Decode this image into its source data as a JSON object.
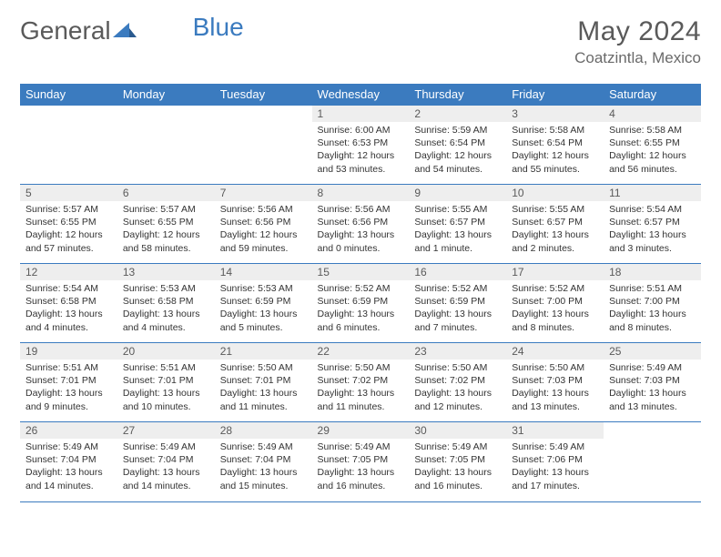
{
  "logo": {
    "text_a": "General",
    "text_b": "Blue"
  },
  "title": "May 2024",
  "location": "Coatzintla, Mexico",
  "colors": {
    "header_bg": "#3b7bbf",
    "header_text": "#ffffff",
    "day_num_bg": "#eeeeee",
    "border": "#3b7bbf",
    "title_color": "#5a5a5a"
  },
  "day_headers": [
    "Sunday",
    "Monday",
    "Tuesday",
    "Wednesday",
    "Thursday",
    "Friday",
    "Saturday"
  ],
  "weeks": [
    [
      {
        "num": "",
        "sunrise": "",
        "sunset": "",
        "daylight": ""
      },
      {
        "num": "",
        "sunrise": "",
        "sunset": "",
        "daylight": ""
      },
      {
        "num": "",
        "sunrise": "",
        "sunset": "",
        "daylight": ""
      },
      {
        "num": "1",
        "sunrise": "Sunrise: 6:00 AM",
        "sunset": "Sunset: 6:53 PM",
        "daylight": "Daylight: 12 hours and 53 minutes."
      },
      {
        "num": "2",
        "sunrise": "Sunrise: 5:59 AM",
        "sunset": "Sunset: 6:54 PM",
        "daylight": "Daylight: 12 hours and 54 minutes."
      },
      {
        "num": "3",
        "sunrise": "Sunrise: 5:58 AM",
        "sunset": "Sunset: 6:54 PM",
        "daylight": "Daylight: 12 hours and 55 minutes."
      },
      {
        "num": "4",
        "sunrise": "Sunrise: 5:58 AM",
        "sunset": "Sunset: 6:55 PM",
        "daylight": "Daylight: 12 hours and 56 minutes."
      }
    ],
    [
      {
        "num": "5",
        "sunrise": "Sunrise: 5:57 AM",
        "sunset": "Sunset: 6:55 PM",
        "daylight": "Daylight: 12 hours and 57 minutes."
      },
      {
        "num": "6",
        "sunrise": "Sunrise: 5:57 AM",
        "sunset": "Sunset: 6:55 PM",
        "daylight": "Daylight: 12 hours and 58 minutes."
      },
      {
        "num": "7",
        "sunrise": "Sunrise: 5:56 AM",
        "sunset": "Sunset: 6:56 PM",
        "daylight": "Daylight: 12 hours and 59 minutes."
      },
      {
        "num": "8",
        "sunrise": "Sunrise: 5:56 AM",
        "sunset": "Sunset: 6:56 PM",
        "daylight": "Daylight: 13 hours and 0 minutes."
      },
      {
        "num": "9",
        "sunrise": "Sunrise: 5:55 AM",
        "sunset": "Sunset: 6:57 PM",
        "daylight": "Daylight: 13 hours and 1 minute."
      },
      {
        "num": "10",
        "sunrise": "Sunrise: 5:55 AM",
        "sunset": "Sunset: 6:57 PM",
        "daylight": "Daylight: 13 hours and 2 minutes."
      },
      {
        "num": "11",
        "sunrise": "Sunrise: 5:54 AM",
        "sunset": "Sunset: 6:57 PM",
        "daylight": "Daylight: 13 hours and 3 minutes."
      }
    ],
    [
      {
        "num": "12",
        "sunrise": "Sunrise: 5:54 AM",
        "sunset": "Sunset: 6:58 PM",
        "daylight": "Daylight: 13 hours and 4 minutes."
      },
      {
        "num": "13",
        "sunrise": "Sunrise: 5:53 AM",
        "sunset": "Sunset: 6:58 PM",
        "daylight": "Daylight: 13 hours and 4 minutes."
      },
      {
        "num": "14",
        "sunrise": "Sunrise: 5:53 AM",
        "sunset": "Sunset: 6:59 PM",
        "daylight": "Daylight: 13 hours and 5 minutes."
      },
      {
        "num": "15",
        "sunrise": "Sunrise: 5:52 AM",
        "sunset": "Sunset: 6:59 PM",
        "daylight": "Daylight: 13 hours and 6 minutes."
      },
      {
        "num": "16",
        "sunrise": "Sunrise: 5:52 AM",
        "sunset": "Sunset: 6:59 PM",
        "daylight": "Daylight: 13 hours and 7 minutes."
      },
      {
        "num": "17",
        "sunrise": "Sunrise: 5:52 AM",
        "sunset": "Sunset: 7:00 PM",
        "daylight": "Daylight: 13 hours and 8 minutes."
      },
      {
        "num": "18",
        "sunrise": "Sunrise: 5:51 AM",
        "sunset": "Sunset: 7:00 PM",
        "daylight": "Daylight: 13 hours and 8 minutes."
      }
    ],
    [
      {
        "num": "19",
        "sunrise": "Sunrise: 5:51 AM",
        "sunset": "Sunset: 7:01 PM",
        "daylight": "Daylight: 13 hours and 9 minutes."
      },
      {
        "num": "20",
        "sunrise": "Sunrise: 5:51 AM",
        "sunset": "Sunset: 7:01 PM",
        "daylight": "Daylight: 13 hours and 10 minutes."
      },
      {
        "num": "21",
        "sunrise": "Sunrise: 5:50 AM",
        "sunset": "Sunset: 7:01 PM",
        "daylight": "Daylight: 13 hours and 11 minutes."
      },
      {
        "num": "22",
        "sunrise": "Sunrise: 5:50 AM",
        "sunset": "Sunset: 7:02 PM",
        "daylight": "Daylight: 13 hours and 11 minutes."
      },
      {
        "num": "23",
        "sunrise": "Sunrise: 5:50 AM",
        "sunset": "Sunset: 7:02 PM",
        "daylight": "Daylight: 13 hours and 12 minutes."
      },
      {
        "num": "24",
        "sunrise": "Sunrise: 5:50 AM",
        "sunset": "Sunset: 7:03 PM",
        "daylight": "Daylight: 13 hours and 13 minutes."
      },
      {
        "num": "25",
        "sunrise": "Sunrise: 5:49 AM",
        "sunset": "Sunset: 7:03 PM",
        "daylight": "Daylight: 13 hours and 13 minutes."
      }
    ],
    [
      {
        "num": "26",
        "sunrise": "Sunrise: 5:49 AM",
        "sunset": "Sunset: 7:04 PM",
        "daylight": "Daylight: 13 hours and 14 minutes."
      },
      {
        "num": "27",
        "sunrise": "Sunrise: 5:49 AM",
        "sunset": "Sunset: 7:04 PM",
        "daylight": "Daylight: 13 hours and 14 minutes."
      },
      {
        "num": "28",
        "sunrise": "Sunrise: 5:49 AM",
        "sunset": "Sunset: 7:04 PM",
        "daylight": "Daylight: 13 hours and 15 minutes."
      },
      {
        "num": "29",
        "sunrise": "Sunrise: 5:49 AM",
        "sunset": "Sunset: 7:05 PM",
        "daylight": "Daylight: 13 hours and 16 minutes."
      },
      {
        "num": "30",
        "sunrise": "Sunrise: 5:49 AM",
        "sunset": "Sunset: 7:05 PM",
        "daylight": "Daylight: 13 hours and 16 minutes."
      },
      {
        "num": "31",
        "sunrise": "Sunrise: 5:49 AM",
        "sunset": "Sunset: 7:06 PM",
        "daylight": "Daylight: 13 hours and 17 minutes."
      },
      {
        "num": "",
        "sunrise": "",
        "sunset": "",
        "daylight": ""
      }
    ]
  ]
}
